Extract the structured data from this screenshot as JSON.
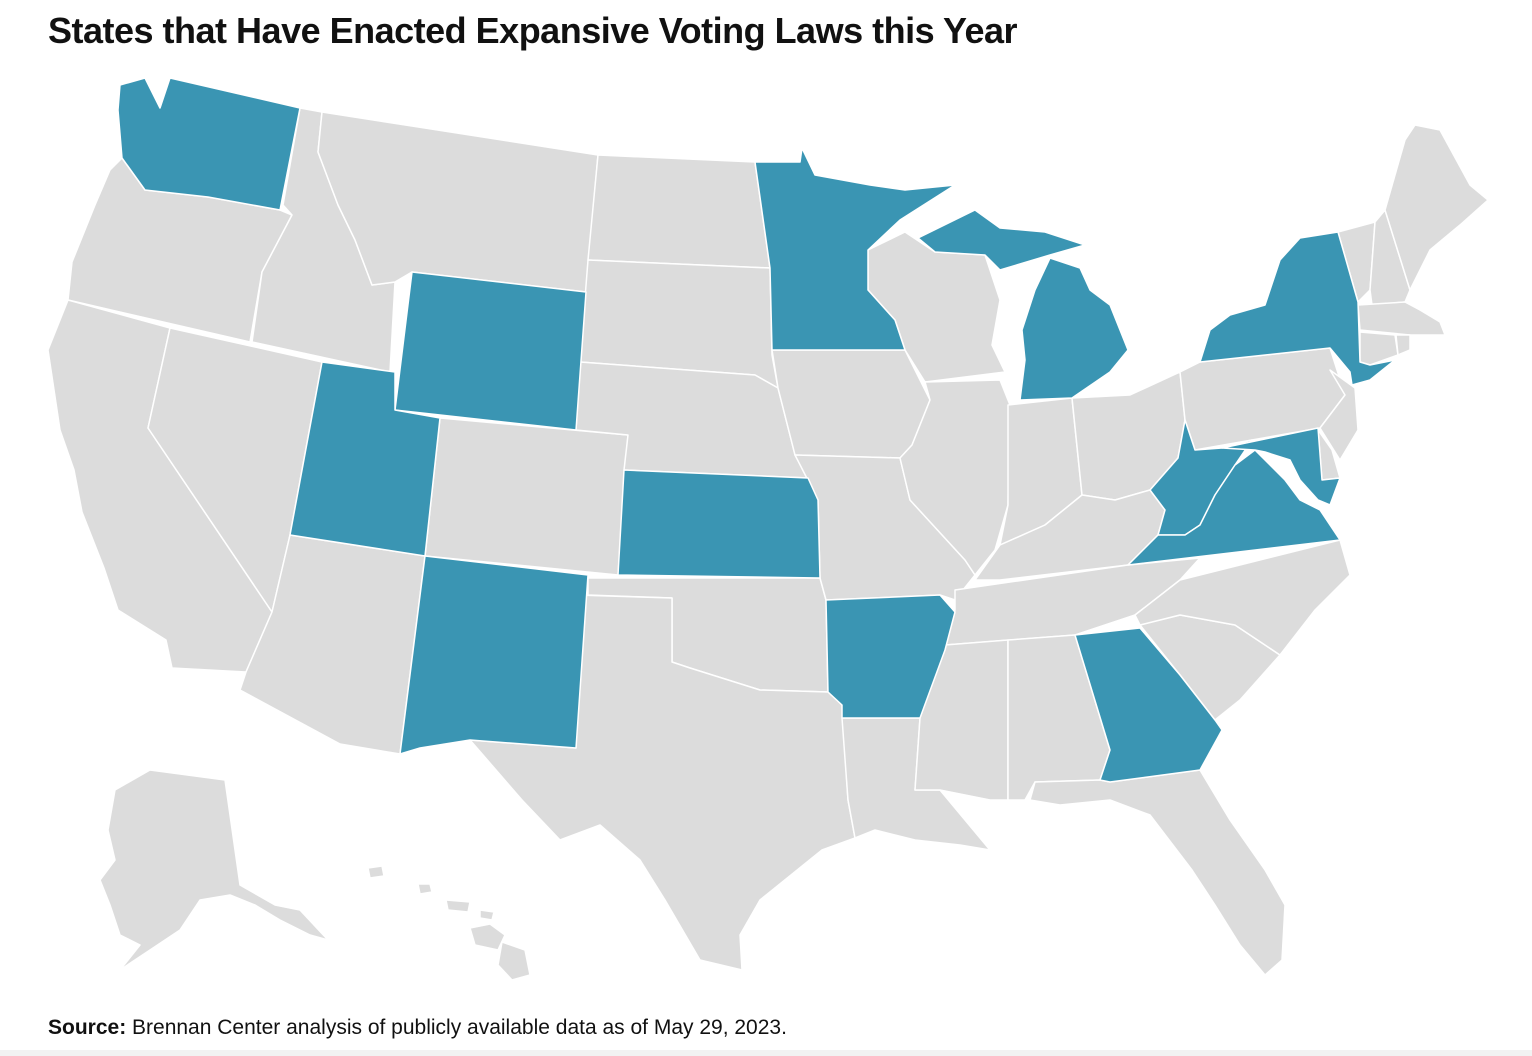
{
  "title": "States that Have Enacted Expansive Voting Laws this Year",
  "source": {
    "label": "Source:",
    "text": " Brennan Center analysis of publicly available data as of May 29, 2023."
  },
  "colors": {
    "enacted": "#3a95b3",
    "other": "#dcdcdc",
    "border": "#ffffff"
  },
  "map": {
    "enacted_states": [
      "Washington",
      "Wyoming",
      "Utah",
      "New Mexico",
      "Kansas",
      "Minnesota",
      "Arkansas",
      "Michigan",
      "New York",
      "West Virginia",
      "Virginia",
      "Maryland",
      "Georgia"
    ],
    "other_states": [
      "Oregon",
      "California",
      "Idaho",
      "Nevada",
      "Montana",
      "Arizona",
      "Colorado",
      "North Dakota",
      "South Dakota",
      "Nebraska",
      "Oklahoma",
      "Texas",
      "Iowa",
      "Missouri",
      "Louisiana",
      "Wisconsin",
      "Illinois",
      "Indiana",
      "Ohio",
      "Kentucky",
      "Tennessee",
      "Mississippi",
      "Alabama",
      "Florida",
      "South Carolina",
      "North Carolina",
      "Pennsylvania",
      "New Jersey",
      "Delaware",
      "Vermont",
      "New Hampshire",
      "Maine",
      "Massachusetts",
      "Connecticut",
      "Rhode Island",
      "Alaska",
      "Hawaii"
    ]
  }
}
